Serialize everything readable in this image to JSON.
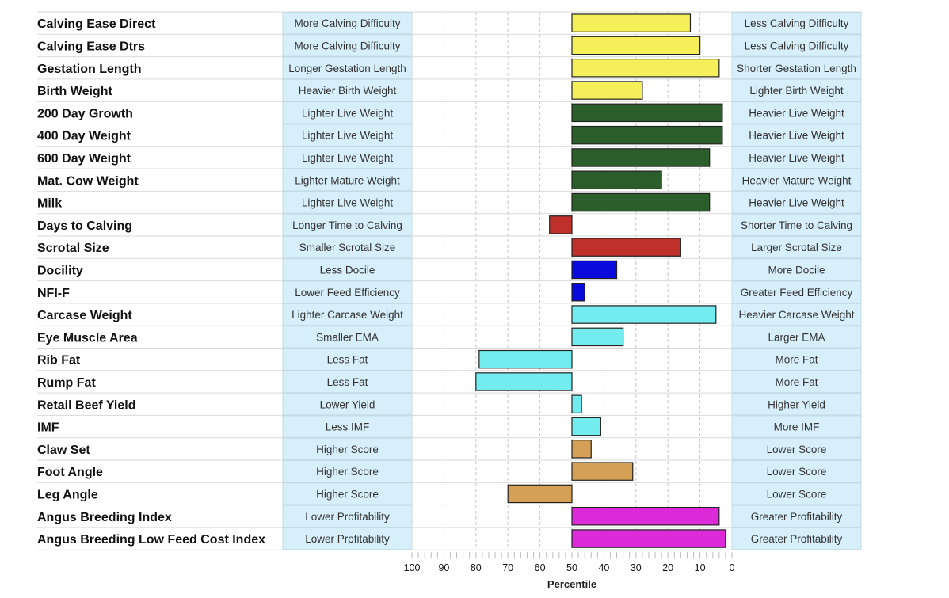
{
  "chart_data": {
    "type": "bar",
    "orientation": "horizontal",
    "xlabel": "Percentile",
    "xlim": [
      100,
      0
    ],
    "x_ticks": [
      "100",
      "90",
      "80",
      "70",
      "60",
      "50",
      "40",
      "30",
      "20",
      "10",
      "0"
    ],
    "baseline": 50,
    "group_colors": {
      "calving": "#f5f05a",
      "growth": "#2b5e2b",
      "fertility": "#c0302a",
      "temperament": "#0a0adc",
      "carcase": "#72ecee",
      "structure": "#d4a055",
      "index": "#dc2ad8"
    },
    "rows": [
      {
        "trait": "Calving Ease Direct",
        "low": "More Calving Difficulty",
        "high": "Less Calving Difficulty",
        "value": 13,
        "group": "calving"
      },
      {
        "trait": "Calving Ease Dtrs",
        "low": "More Calving Difficulty",
        "high": "Less Calving Difficulty",
        "value": 10,
        "group": "calving"
      },
      {
        "trait": "Gestation Length",
        "low": "Longer Gestation Length",
        "high": "Shorter Gestation Length",
        "value": 4,
        "group": "calving"
      },
      {
        "trait": "Birth Weight",
        "low": "Heavier Birth Weight",
        "high": "Lighter Birth Weight",
        "value": 28,
        "group": "calving"
      },
      {
        "trait": "200 Day Growth",
        "low": "Lighter Live Weight",
        "high": "Heavier Live Weight",
        "value": 3,
        "group": "growth"
      },
      {
        "trait": "400 Day Weight",
        "low": "Lighter Live Weight",
        "high": "Heavier Live Weight",
        "value": 3,
        "group": "growth"
      },
      {
        "trait": "600 Day Weight",
        "low": "Lighter Live Weight",
        "high": "Heavier Live Weight",
        "value": 7,
        "group": "growth"
      },
      {
        "trait": "Mat. Cow Weight",
        "low": "Lighter Mature Weight",
        "high": "Heavier Mature Weight",
        "value": 22,
        "group": "growth"
      },
      {
        "trait": "Milk",
        "low": "Lighter Live Weight",
        "high": "Heavier Live Weight",
        "value": 7,
        "group": "growth"
      },
      {
        "trait": "Days to Calving",
        "low": "Longer Time to Calving",
        "high": "Shorter Time to Calving",
        "value": 57,
        "group": "fertility"
      },
      {
        "trait": "Scrotal Size",
        "low": "Smaller Scrotal Size",
        "high": "Larger Scrotal Size",
        "value": 16,
        "group": "fertility"
      },
      {
        "trait": "Docility",
        "low": "Less Docile",
        "high": "More Docile",
        "value": 36,
        "group": "temperament"
      },
      {
        "trait": "NFI-F",
        "low": "Lower Feed Efficiency",
        "high": "Greater Feed Efficiency",
        "value": 46,
        "group": "temperament"
      },
      {
        "trait": "Carcase Weight",
        "low": "Lighter Carcase Weight",
        "high": "Heavier Carcase Weight",
        "value": 5,
        "group": "carcase"
      },
      {
        "trait": "Eye Muscle Area",
        "low": "Smaller EMA",
        "high": "Larger EMA",
        "value": 34,
        "group": "carcase"
      },
      {
        "trait": "Rib Fat",
        "low": "Less Fat",
        "high": "More Fat",
        "value": 79,
        "group": "carcase"
      },
      {
        "trait": "Rump Fat",
        "low": "Less Fat",
        "high": "More Fat",
        "value": 80,
        "group": "carcase"
      },
      {
        "trait": "Retail Beef Yield",
        "low": "Lower Yield",
        "high": "Higher Yield",
        "value": 47,
        "group": "carcase"
      },
      {
        "trait": "IMF",
        "low": "Less IMF",
        "high": "More IMF",
        "value": 41,
        "group": "carcase"
      },
      {
        "trait": "Claw Set",
        "low": "Higher Score",
        "high": "Lower Score",
        "value": 44,
        "group": "structure"
      },
      {
        "trait": "Foot Angle",
        "low": "Higher Score",
        "high": "Lower Score",
        "value": 31,
        "group": "structure"
      },
      {
        "trait": "Leg Angle",
        "low": "Higher Score",
        "high": "Lower Score",
        "value": 70,
        "group": "structure"
      },
      {
        "trait": "Angus Breeding Index",
        "low": "Lower Profitability",
        "high": "Greater Profitability",
        "value": 4,
        "group": "index"
      },
      {
        "trait": "Angus Breeding Low Feed Cost Index",
        "low": "Lower Profitability",
        "high": "Greater Profitability",
        "value": 2,
        "group": "index"
      }
    ]
  }
}
